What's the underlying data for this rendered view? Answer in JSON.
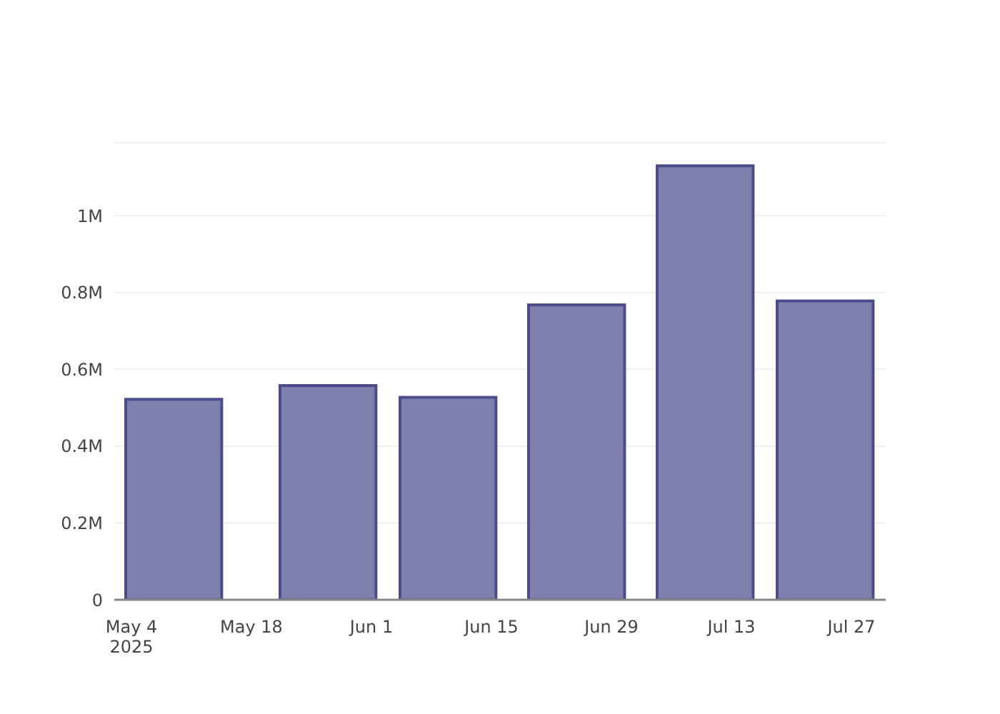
{
  "chart_data": {
    "type": "bar",
    "x": [
      "2025-05-09",
      "2025-05-27",
      "2025-06-10",
      "2025-06-25",
      "2025-07-10",
      "2025-07-24"
    ],
    "values": [
      522000,
      558000,
      527000,
      768000,
      1130000,
      778000
    ],
    "color": "#7f7fae",
    "xlim": [
      "2025-05-02",
      "2025-07-31"
    ],
    "xticks": [
      {
        "value": "2025-05-04",
        "label": "May 4\n2025"
      },
      {
        "value": "2025-05-18",
        "label": "May 18"
      },
      {
        "value": "2025-06-01",
        "label": "Jun 1"
      },
      {
        "value": "2025-06-15",
        "label": "Jun 15"
      },
      {
        "value": "2025-06-29",
        "label": "Jun 29"
      },
      {
        "value": "2025-07-13",
        "label": "Jul 13"
      },
      {
        "value": "2025-07-27",
        "label": "Jul 27"
      }
    ],
    "ylim": [
      0,
      1190000
    ],
    "yticks": [
      0,
      {
        "value": 200000,
        "label": "0.2M"
      },
      {
        "value": 400000,
        "label": "0.4M"
      },
      {
        "value": 600000,
        "label": "0.6M"
      },
      {
        "value": 800000,
        "label": "0.8M"
      },
      {
        "value": 1000000,
        "label": "1M"
      }
    ],
    "grid": "y"
  }
}
